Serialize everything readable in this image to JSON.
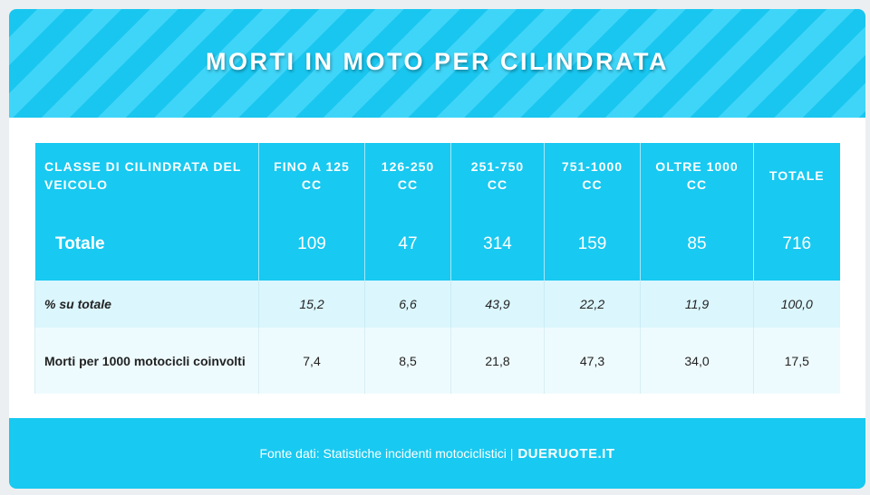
{
  "header": {
    "title": "MORTI IN MOTO PER CILINDRATA"
  },
  "table": {
    "headers": [
      "CLASSE DI CILINDRATA DEL VEICOLO",
      "FINO A 125 CC",
      "126-250 CC",
      "251-750 CC",
      "751-1000 CC",
      "OLTRE 1000 CC",
      "TOTALE"
    ],
    "rows": [
      [
        "Totale",
        "109",
        "47",
        "314",
        "159",
        "85",
        "716"
      ],
      [
        "% su totale",
        "15,2",
        "6,6",
        "43,9",
        "22,2",
        "11,9",
        "100,0"
      ],
      [
        "Morti per 1000 motocicli coinvolti",
        "7,4",
        "8,5",
        "21,8",
        "47,3",
        "34,0",
        "17,5"
      ]
    ]
  },
  "footer": {
    "source": "Fonte dati: Statistiche incidenti motociclistici |",
    "brand": "DUERUOTE.IT"
  }
}
